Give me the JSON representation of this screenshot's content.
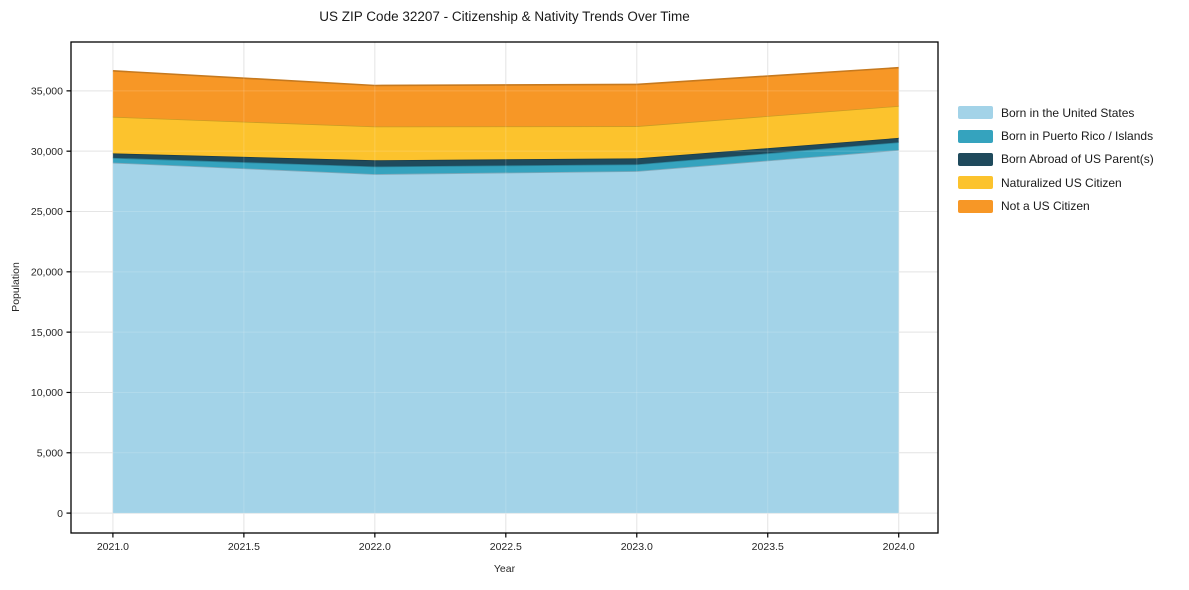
{
  "title": "US ZIP Code 32207 - Citizenship & Nativity Trends Over Time",
  "chart_data": {
    "type": "area",
    "stacked": true,
    "title": "US ZIP Code 32207 - Citizenship & Nativity Trends Over Time",
    "xlabel": "Year",
    "ylabel": "Population",
    "x": [
      2021,
      2022,
      2023,
      2024
    ],
    "series": [
      {
        "name": "Born in the United States",
        "color": "#A3D3E8",
        "values": [
          29050,
          28100,
          28350,
          30100
        ]
      },
      {
        "name": "Born in Puerto Rico / Islands",
        "color": "#35A3BE",
        "values": [
          400,
          630,
          560,
          640
        ]
      },
      {
        "name": "Born Abroad of US Parent(s)",
        "color": "#1F4A5C",
        "values": [
          370,
          515,
          495,
          360
        ]
      },
      {
        "name": "Naturalized US Citizen",
        "color": "#FCC32D",
        "values": [
          3030,
          2800,
          2670,
          2650
        ]
      },
      {
        "name": "Not a US Citizen",
        "color": "#F79726",
        "values": [
          3810,
          3400,
          3460,
          3170
        ]
      }
    ],
    "stack_totals": [
      36660,
      35445,
      35535,
      36920
    ],
    "xticks": [
      2021.0,
      2021.5,
      2022.0,
      2022.5,
      2023.0,
      2023.5,
      2024.0
    ],
    "yticks": [
      0,
      5000,
      10000,
      15000,
      20000,
      25000,
      30000,
      35000
    ],
    "xlim": [
      2020.84,
      2024.15
    ],
    "ylim": [
      -1650,
      39050
    ],
    "grid": true,
    "legend_position": "right",
    "frame_color": "#000000",
    "grid_color": "#e0e0e0"
  }
}
